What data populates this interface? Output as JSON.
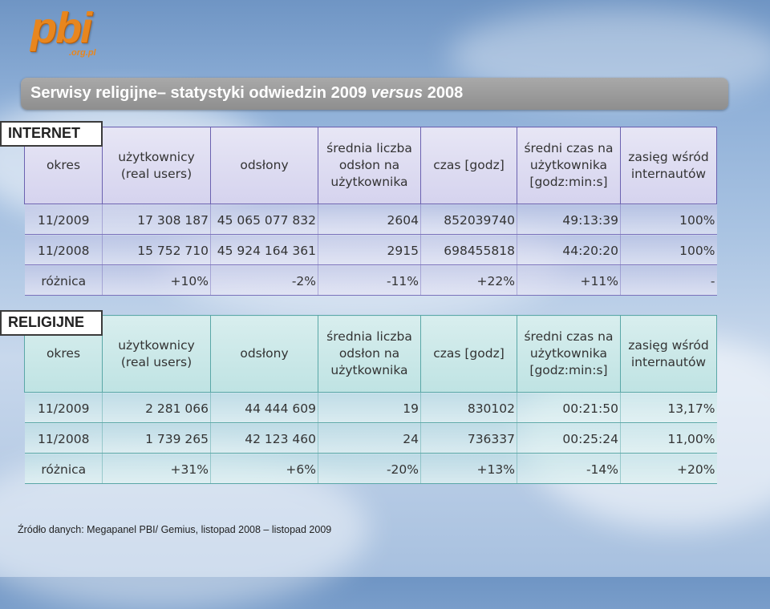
{
  "logo": {
    "main": "pbi",
    "sub": ".org.pl"
  },
  "title": {
    "prefix": "Serwisy religijne– statystyki odwiedzin 2009 ",
    "versus": "versus",
    "suffix": " 2008"
  },
  "columns": [
    "okres",
    "użytkownicy (real users)",
    "odsłony",
    "średnia liczba odsłon na użytkownika",
    "czas [godz]",
    "średni czas na użytkownika [godz:min:s]",
    "zasięg wśród internautów"
  ],
  "internet": {
    "label": "INTERNET",
    "rows": [
      [
        "11/2009",
        "17 308 187",
        "45 065 077 832",
        "2604",
        "852039740",
        "49:13:39",
        "100%"
      ],
      [
        "11/2008",
        "15 752 710",
        "45 924 164 361",
        "2915",
        "698455818",
        "44:20:20",
        "100%"
      ],
      [
        "różnica",
        "+10%",
        "-2%",
        "-11%",
        "+22%",
        "+11%",
        "-"
      ]
    ]
  },
  "religijne": {
    "label": "RELIGIJNE",
    "rows": [
      [
        "11/2009",
        "2 281 066",
        "44 444 609",
        "19",
        "830102",
        "00:21:50",
        "13,17%"
      ],
      [
        "11/2008",
        "1 739 265",
        "42 123 460",
        "24",
        "736337",
        "00:25:24",
        "11,00%"
      ],
      [
        "różnica",
        "+31%",
        "+6%",
        "-20%",
        "+13%",
        "-14%",
        "+20%"
      ]
    ]
  },
  "source": "Źródło danych: Megapanel PBI/ Gemius, listopad 2008 – listopad 2009"
}
